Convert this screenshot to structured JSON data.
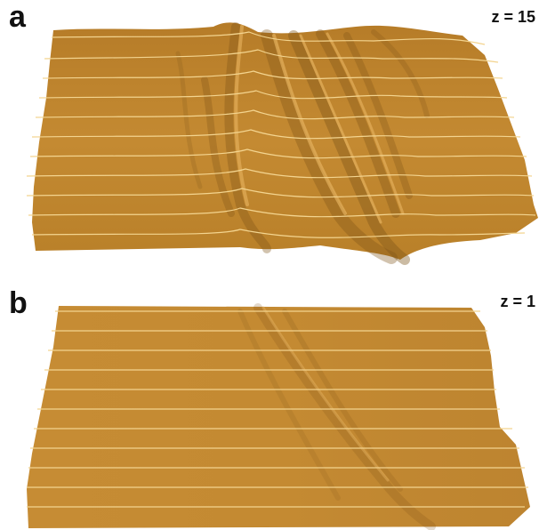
{
  "panels": [
    {
      "id": "a",
      "letter": "a",
      "z_label": "z = 15"
    },
    {
      "id": "b",
      "letter": "b",
      "z_label": "z = 1"
    }
  ],
  "colors": {
    "surface": "#c48a32",
    "surface_shadow": "#7e5418",
    "surface_highlight": "#e7b461",
    "contour_line": "#f3d48f",
    "background": "#ffffff"
  }
}
